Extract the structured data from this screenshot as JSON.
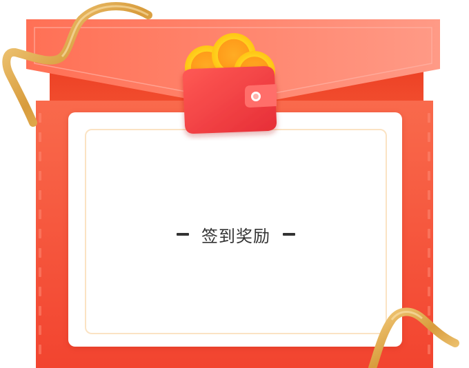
{
  "reward_card": {
    "title": "签到奖励"
  },
  "icons": {
    "wallet": "wallet-icon",
    "coins": "gold-coins-icon",
    "ribbon": "gold-ribbon"
  },
  "colors": {
    "envelope_red": "#f5533d",
    "flap_coral": "#ff8e7c",
    "back_red": "#e8351f",
    "coin_gold": "#ffd21f",
    "coin_orange": "#ff9e1a",
    "wallet_red": "#ef3c3c",
    "ribbon_gold": "#e4b35a",
    "card_border": "#fbe3c3",
    "text": "#333333"
  }
}
